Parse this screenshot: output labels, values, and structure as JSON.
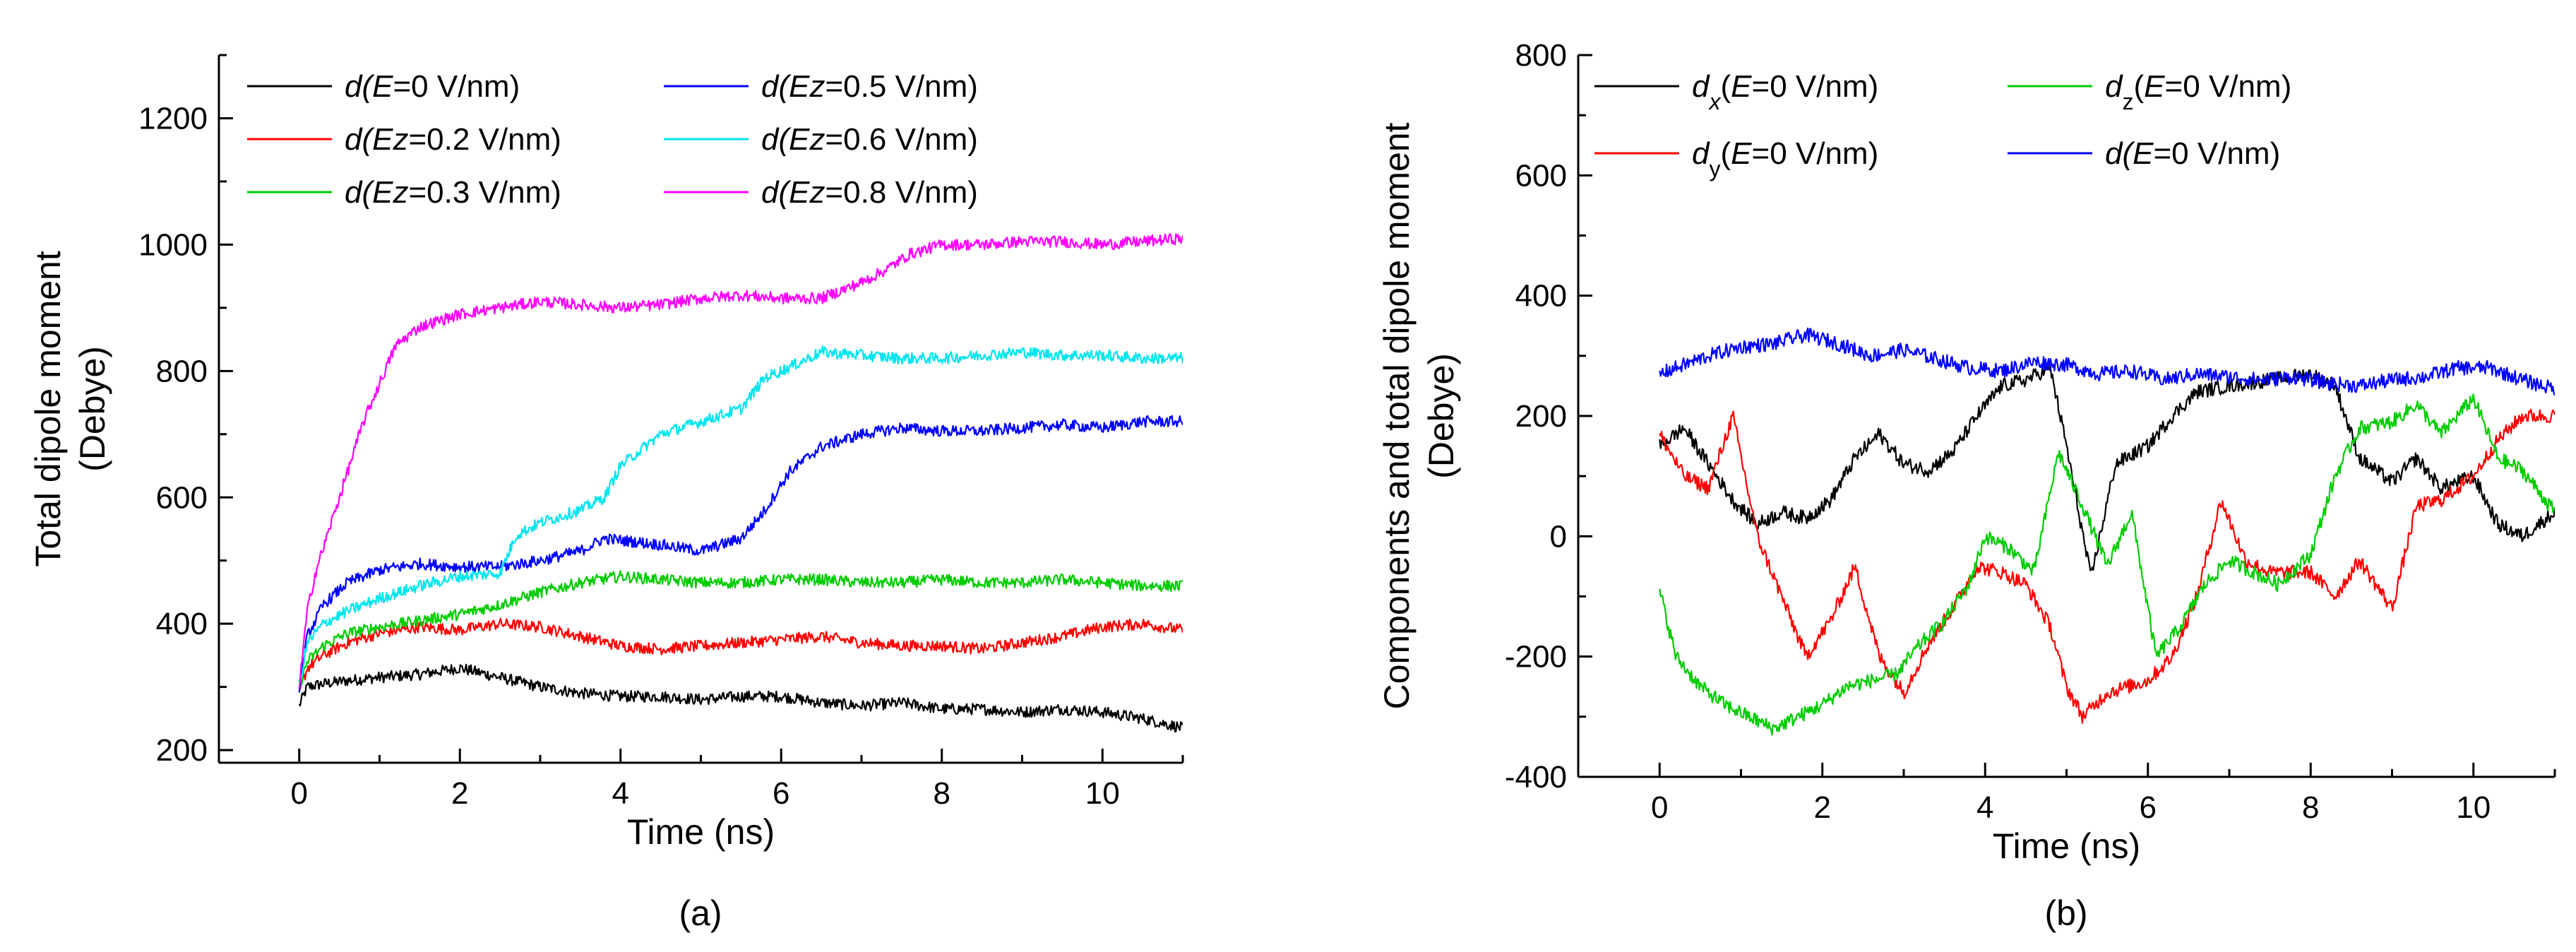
{
  "chart_data": [
    {
      "panel_label": "(a)",
      "type": "line",
      "xlabel": "Time (ns)",
      "ylabel_lines": [
        "Total dipole moment",
        "(Debye)"
      ],
      "xlim": [
        -1,
        11
      ],
      "ylim": [
        180,
        1300
      ],
      "x_ticks": [
        0,
        2,
        4,
        6,
        8,
        10
      ],
      "y_ticks": [
        200,
        400,
        600,
        800,
        1000,
        1200
      ],
      "series": [
        {
          "name": "E=0",
          "label_prefix": "d(",
          "label_var": "E",
          "label_suffix": "=0 V/nm)",
          "color": "#000000",
          "x": [
            0,
            0.1,
            0.3,
            0.6,
            1,
            1.5,
            2,
            2.5,
            3,
            3.5,
            4,
            4.5,
            5,
            5.5,
            6,
            6.5,
            7,
            7.5,
            8,
            8.5,
            9,
            9.5,
            10,
            10.5,
            11
          ],
          "y": [
            270,
            300,
            305,
            310,
            315,
            320,
            330,
            315,
            300,
            290,
            285,
            285,
            280,
            285,
            285,
            275,
            270,
            275,
            265,
            265,
            260,
            265,
            260,
            250,
            235
          ]
        },
        {
          "name": "Ez=0.2",
          "label_prefix": "d(",
          "label_var": "Ez",
          "label_suffix": "=0.2 V/nm)",
          "color": "#ff0000",
          "x": [
            0,
            0.1,
            0.3,
            0.6,
            1,
            1.5,
            2,
            2.5,
            3,
            3.5,
            4,
            4.5,
            5,
            5.5,
            6,
            6.5,
            7,
            7.5,
            8,
            8.5,
            9,
            9.5,
            10,
            10.5,
            11
          ],
          "y": [
            290,
            330,
            350,
            370,
            385,
            395,
            390,
            400,
            395,
            380,
            365,
            360,
            365,
            370,
            375,
            380,
            370,
            365,
            365,
            360,
            370,
            380,
            395,
            400,
            390
          ]
        },
        {
          "name": "Ez=0.3",
          "label_prefix": "d(",
          "label_var": "Ez",
          "label_suffix": "=0.3 V/nm)",
          "color": "#00cc00",
          "x": [
            0,
            0.1,
            0.3,
            0.6,
            1,
            1.5,
            2,
            2.5,
            3,
            3.5,
            4,
            4.5,
            5,
            5.5,
            6,
            6.5,
            7,
            7.5,
            8,
            8.5,
            9,
            9.5,
            10,
            10.5,
            11
          ],
          "y": [
            300,
            340,
            365,
            385,
            395,
            405,
            415,
            430,
            450,
            465,
            475,
            470,
            465,
            465,
            470,
            470,
            465,
            465,
            470,
            465,
            465,
            470,
            465,
            460,
            460
          ]
        },
        {
          "name": "Ez=0.5",
          "label_prefix": "d(",
          "label_var": "Ez",
          "label_suffix": "=0.5 V/nm)",
          "color": "#0000ff",
          "x": [
            0,
            0.1,
            0.3,
            0.6,
            1,
            1.5,
            2,
            2.5,
            3,
            3.5,
            3.8,
            4.5,
            5,
            5.5,
            5.8,
            6.1,
            6.5,
            7,
            7.5,
            8,
            8.5,
            9,
            9.5,
            10,
            10.5,
            11
          ],
          "y": [
            300,
            380,
            430,
            465,
            485,
            495,
            490,
            490,
            500,
            515,
            535,
            525,
            515,
            535,
            580,
            640,
            680,
            700,
            710,
            705,
            705,
            710,
            715,
            710,
            720,
            720
          ]
        },
        {
          "name": "Ez=0.6",
          "label_prefix": "d(",
          "label_var": "Ez",
          "label_suffix": "=0.6 V/nm)",
          "color": "#00e5ee",
          "x": [
            0,
            0.1,
            0.3,
            0.6,
            1,
            1.5,
            2,
            2.5,
            2.7,
            3,
            3.5,
            3.8,
            4,
            4.5,
            5,
            5.5,
            5.8,
            6,
            6.5,
            7,
            7.5,
            8,
            8.5,
            9,
            9.5,
            10,
            10.5,
            11
          ],
          "y": [
            300,
            370,
            400,
            420,
            440,
            460,
            475,
            480,
            540,
            560,
            580,
            600,
            650,
            700,
            720,
            740,
            790,
            800,
            830,
            825,
            820,
            820,
            825,
            830,
            825,
            825,
            820,
            820
          ]
        },
        {
          "name": "Ez=0.8",
          "label_prefix": "d(",
          "label_var": "Ez",
          "label_suffix": "=0.8 V/nm)",
          "color": "#ff00ff",
          "x": [
            0,
            0.1,
            0.2,
            0.4,
            0.6,
            0.8,
            1,
            1.2,
            1.5,
            2,
            2.5,
            3,
            3.5,
            4,
            4.5,
            5,
            5.5,
            6,
            6.5,
            7,
            7.3,
            7.6,
            8,
            8.5,
            9,
            9.5,
            10,
            10.5,
            11
          ],
          "y": [
            300,
            420,
            480,
            560,
            640,
            720,
            780,
            840,
            870,
            890,
            900,
            910,
            905,
            900,
            905,
            915,
            920,
            915,
            915,
            940,
            960,
            985,
            1000,
            1000,
            1005,
            1005,
            1000,
            1005,
            1010
          ]
        }
      ]
    },
    {
      "panel_label": "(b)",
      "type": "line",
      "xlabel": "Time (ns)",
      "ylabel_lines": [
        "Components and total dipole moment",
        "(Debye)"
      ],
      "xlim": [
        -1,
        11
      ],
      "ylim": [
        -400,
        800
      ],
      "x_ticks": [
        0,
        2,
        4,
        6,
        8,
        10
      ],
      "y_ticks": [
        -400,
        -200,
        0,
        200,
        400,
        600,
        800
      ],
      "series": [
        {
          "name": "dx E=0",
          "label_prefix": "d",
          "label_sub": "x",
          "label_open": "(",
          "label_var": "E",
          "label_suffix": "=0 V/nm)",
          "sub_italic": true,
          "color": "#000000",
          "x": [
            0,
            0.3,
            0.6,
            0.9,
            1.2,
            1.5,
            1.8,
            2.1,
            2.4,
            2.7,
            3,
            3.3,
            3.6,
            3.9,
            4.2,
            4.5,
            4.8,
            5,
            5.3,
            5.6,
            6,
            6.3,
            6.6,
            7,
            7.5,
            8,
            8.3,
            8.6,
            9,
            9.3,
            9.6,
            10,
            10.3,
            10.6,
            11
          ],
          "y": [
            150,
            180,
            120,
            60,
            20,
            40,
            30,
            60,
            130,
            170,
            120,
            110,
            140,
            200,
            250,
            260,
            280,
            150,
            -70,
            120,
            150,
            200,
            240,
            250,
            260,
            270,
            250,
            130,
            90,
            130,
            80,
            100,
            20,
            0,
            40
          ]
        },
        {
          "name": "dy E=0",
          "label_prefix": "d",
          "label_sub": "y",
          "label_open": "(",
          "label_var": "E",
          "label_suffix": "=0 V/nm)",
          "sub_italic": false,
          "color": "#ff0000",
          "x": [
            0,
            0.3,
            0.6,
            0.9,
            1.2,
            1.5,
            1.8,
            2.1,
            2.4,
            2.7,
            3,
            3.3,
            3.6,
            3.9,
            4.2,
            4.5,
            4.8,
            5,
            5.2,
            5.5,
            6,
            6.3,
            6.6,
            6.9,
            7.2,
            7.5,
            8,
            8.3,
            8.6,
            9,
            9.3,
            9.6,
            10,
            10.3,
            10.6,
            11
          ],
          "y": [
            170,
            100,
            80,
            200,
            0,
            -100,
            -200,
            -140,
            -50,
            -200,
            -260,
            -180,
            -120,
            -50,
            -60,
            -80,
            -150,
            -250,
            -300,
            -260,
            -240,
            -200,
            -100,
            60,
            -40,
            -60,
            -60,
            -100,
            -40,
            -120,
            50,
            60,
            100,
            160,
            200,
            200
          ]
        },
        {
          "name": "dz E=0",
          "label_prefix": "d",
          "label_sub": "z",
          "label_open": "(",
          "label_var": "E",
          "label_suffix": "=0 V/nm)",
          "sub_italic": false,
          "color": "#00cc00",
          "x": [
            0,
            0.2,
            0.5,
            0.8,
            1.1,
            1.4,
            1.7,
            2,
            2.3,
            2.6,
            2.9,
            3.2,
            3.5,
            3.8,
            4,
            4.3,
            4.6,
            4.9,
            5.2,
            5.5,
            5.8,
            6.1,
            6.4,
            6.7,
            7,
            7.3,
            7.6,
            8,
            8.3,
            8.6,
            9,
            9.3,
            9.6,
            10,
            10.3,
            10.6,
            11
          ],
          "y": [
            -90,
            -200,
            -250,
            -280,
            -300,
            -320,
            -300,
            -280,
            -250,
            -240,
            -230,
            -180,
            -140,
            -80,
            0,
            -20,
            -60,
            140,
            50,
            -50,
            40,
            -200,
            -150,
            -80,
            -40,
            -60,
            -80,
            -30,
            100,
            180,
            190,
            220,
            170,
            230,
            130,
            110,
            40
          ]
        },
        {
          "name": "d E=0",
          "label_prefix": "d(",
          "label_var": "E",
          "label_suffix": "=0 V/nm)",
          "color": "#0000ff",
          "x": [
            0,
            0.3,
            0.6,
            1,
            1.4,
            1.8,
            2.2,
            2.6,
            3,
            3.4,
            3.8,
            4.2,
            4.6,
            5,
            5.4,
            5.8,
            6.2,
            6.6,
            7,
            7.4,
            7.8,
            8.2,
            8.6,
            9,
            9.4,
            9.8,
            10.2,
            10.6,
            11
          ],
          "y": [
            270,
            285,
            300,
            315,
            320,
            335,
            320,
            300,
            310,
            295,
            280,
            275,
            290,
            285,
            270,
            275,
            260,
            270,
            265,
            260,
            265,
            255,
            250,
            260,
            265,
            280,
            280,
            260,
            245
          ]
        }
      ]
    }
  ]
}
